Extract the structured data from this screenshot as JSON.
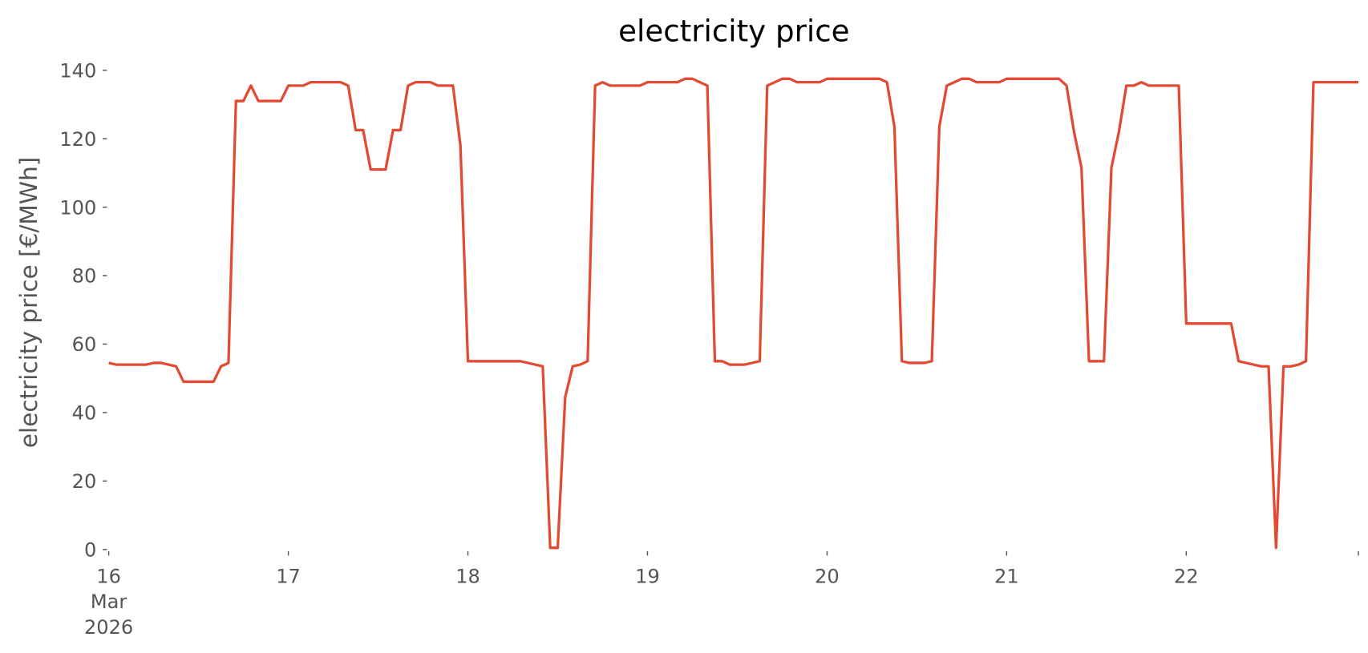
{
  "chart_data": {
    "type": "line",
    "title": "electricity price",
    "y_label": "electricity price [€/MWh]",
    "x": [
      "2026-03-16 00:00",
      "2026-03-16 01:00",
      "2026-03-16 02:00",
      "2026-03-16 03:00",
      "2026-03-16 04:00",
      "2026-03-16 05:00",
      "2026-03-16 06:00",
      "2026-03-16 07:00",
      "2026-03-16 08:00",
      "2026-03-16 09:00",
      "2026-03-16 10:00",
      "2026-03-16 11:00",
      "2026-03-16 12:00",
      "2026-03-16 13:00",
      "2026-03-16 14:00",
      "2026-03-16 15:00",
      "2026-03-16 16:00",
      "2026-03-16 17:00",
      "2026-03-16 18:00",
      "2026-03-16 19:00",
      "2026-03-16 20:00",
      "2026-03-16 21:00",
      "2026-03-16 22:00",
      "2026-03-16 23:00",
      "2026-03-17 00:00",
      "2026-03-17 01:00",
      "2026-03-17 02:00",
      "2026-03-17 03:00",
      "2026-03-17 04:00",
      "2026-03-17 05:00",
      "2026-03-17 06:00",
      "2026-03-17 07:00",
      "2026-03-17 08:00",
      "2026-03-17 09:00",
      "2026-03-17 10:00",
      "2026-03-17 11:00",
      "2026-03-17 12:00",
      "2026-03-17 13:00",
      "2026-03-17 14:00",
      "2026-03-17 15:00",
      "2026-03-17 16:00",
      "2026-03-17 17:00",
      "2026-03-17 18:00",
      "2026-03-17 19:00",
      "2026-03-17 20:00",
      "2026-03-17 21:00",
      "2026-03-17 22:00",
      "2026-03-17 23:00",
      "2026-03-18 00:00",
      "2026-03-18 01:00",
      "2026-03-18 02:00",
      "2026-03-18 03:00",
      "2026-03-18 04:00",
      "2026-03-18 05:00",
      "2026-03-18 06:00",
      "2026-03-18 07:00",
      "2026-03-18 08:00",
      "2026-03-18 09:00",
      "2026-03-18 10:00",
      "2026-03-18 11:00",
      "2026-03-18 12:00",
      "2026-03-18 13:00",
      "2026-03-18 14:00",
      "2026-03-18 15:00",
      "2026-03-18 16:00",
      "2026-03-18 17:00",
      "2026-03-18 18:00",
      "2026-03-18 19:00",
      "2026-03-18 20:00",
      "2026-03-18 21:00",
      "2026-03-18 22:00",
      "2026-03-18 23:00",
      "2026-03-19 00:00",
      "2026-03-19 01:00",
      "2026-03-19 02:00",
      "2026-03-19 03:00",
      "2026-03-19 04:00",
      "2026-03-19 05:00",
      "2026-03-19 06:00",
      "2026-03-19 07:00",
      "2026-03-19 08:00",
      "2026-03-19 09:00",
      "2026-03-19 10:00",
      "2026-03-19 11:00",
      "2026-03-19 12:00",
      "2026-03-19 13:00",
      "2026-03-19 14:00",
      "2026-03-19 15:00",
      "2026-03-19 16:00",
      "2026-03-19 17:00",
      "2026-03-19 18:00",
      "2026-03-19 19:00",
      "2026-03-19 20:00",
      "2026-03-19 21:00",
      "2026-03-19 22:00",
      "2026-03-19 23:00",
      "2026-03-20 00:00",
      "2026-03-20 01:00",
      "2026-03-20 02:00",
      "2026-03-20 03:00",
      "2026-03-20 04:00",
      "2026-03-20 05:00",
      "2026-03-20 06:00",
      "2026-03-20 07:00",
      "2026-03-20 08:00",
      "2026-03-20 09:00",
      "2026-03-20 10:00",
      "2026-03-20 11:00",
      "2026-03-20 12:00",
      "2026-03-20 13:00",
      "2026-03-20 14:00",
      "2026-03-20 15:00",
      "2026-03-20 16:00",
      "2026-03-20 17:00",
      "2026-03-20 18:00",
      "2026-03-20 19:00",
      "2026-03-20 20:00",
      "2026-03-20 21:00",
      "2026-03-20 22:00",
      "2026-03-20 23:00",
      "2026-03-21 00:00",
      "2026-03-21 01:00",
      "2026-03-21 02:00",
      "2026-03-21 03:00",
      "2026-03-21 04:00",
      "2026-03-21 05:00",
      "2026-03-21 06:00",
      "2026-03-21 07:00",
      "2026-03-21 08:00",
      "2026-03-21 09:00",
      "2026-03-21 10:00",
      "2026-03-21 11:00",
      "2026-03-21 12:00",
      "2026-03-21 13:00",
      "2026-03-21 14:00",
      "2026-03-21 15:00",
      "2026-03-21 16:00",
      "2026-03-21 17:00",
      "2026-03-21 18:00",
      "2026-03-21 19:00",
      "2026-03-21 20:00",
      "2026-03-21 21:00",
      "2026-03-21 22:00",
      "2026-03-21 23:00",
      "2026-03-22 00:00",
      "2026-03-22 01:00",
      "2026-03-22 02:00",
      "2026-03-22 03:00",
      "2026-03-22 04:00",
      "2026-03-22 05:00",
      "2026-03-22 06:00",
      "2026-03-22 07:00",
      "2026-03-22 08:00",
      "2026-03-22 09:00",
      "2026-03-22 10:00",
      "2026-03-22 11:00",
      "2026-03-22 12:00",
      "2026-03-22 13:00",
      "2026-03-22 14:00",
      "2026-03-22 15:00",
      "2026-03-22 16:00",
      "2026-03-22 17:00",
      "2026-03-22 18:00",
      "2026-03-22 19:00",
      "2026-03-22 20:00",
      "2026-03-22 21:00",
      "2026-03-22 22:00",
      "2026-03-22 23:00"
    ],
    "series": [
      {
        "color": "#e24a33",
        "values": [
          54.5,
          54,
          54,
          54,
          54,
          54,
          54.5,
          54.5,
          54,
          53.5,
          49,
          49,
          49,
          49,
          49,
          53.5,
          54.5,
          131,
          131,
          135.5,
          131,
          131,
          131,
          131,
          135.5,
          135.5,
          135.5,
          136.5,
          136.5,
          136.5,
          136.5,
          136.5,
          135.5,
          122.5,
          122.5,
          111,
          111,
          111,
          122.5,
          122.5,
          135.5,
          136.5,
          136.5,
          136.5,
          135.5,
          135.5,
          135.5,
          118,
          55,
          55,
          55,
          55,
          55,
          55,
          55,
          55,
          54.5,
          54,
          53.5,
          0.5,
          0.5,
          44.5,
          53.5,
          54,
          55,
          135.5,
          136.5,
          135.5,
          135.5,
          135.5,
          135.5,
          135.5,
          136.5,
          136.5,
          136.5,
          136.5,
          136.5,
          137.5,
          137.5,
          136.5,
          135.5,
          55,
          55,
          54,
          54,
          54,
          54.5,
          55,
          135.5,
          136.5,
          137.5,
          137.5,
          136.5,
          136.5,
          136.5,
          136.5,
          137.5,
          137.5,
          137.5,
          137.5,
          137.5,
          137.5,
          137.5,
          137.5,
          136.5,
          123.5,
          55,
          54.5,
          54.5,
          54.5,
          55,
          123.5,
          135.5,
          136.5,
          137.5,
          137.5,
          136.5,
          136.5,
          136.5,
          136.5,
          137.5,
          137.5,
          137.5,
          137.5,
          137.5,
          137.5,
          137.5,
          137.5,
          135.5,
          122,
          111.5,
          55,
          55,
          55,
          111.5,
          122,
          135.5,
          135.5,
          136.5,
          135.5,
          135.5,
          135.5,
          135.5,
          135.5,
          66,
          66,
          66,
          66,
          66,
          66,
          66,
          55,
          54.5,
          54,
          53.5,
          53.5,
          0.5,
          53.5,
          53.5,
          54,
          55,
          136.5,
          136.5,
          136.5,
          136.5,
          136.5,
          136.5,
          136.5
        ]
      }
    ],
    "xlim": [
      "2026-03-16 00:00",
      "2026-03-22 23:00"
    ],
    "xticks": [
      {
        "value": "2026-03-16 00:00",
        "label": [
          "16",
          "Mar",
          "2026"
        ]
      },
      {
        "value": "2026-03-17 00:00",
        "label": "17"
      },
      {
        "value": "2026-03-18 00:00",
        "label": "18"
      },
      {
        "value": "2026-03-19 00:00",
        "label": "19"
      },
      {
        "value": "2026-03-20 00:00",
        "label": "20"
      },
      {
        "value": "2026-03-21 00:00",
        "label": "21"
      },
      {
        "value": "2026-03-22 00:00",
        "label": "22"
      },
      {
        "value": "2026-03-22 23:00",
        "label": null
      }
    ],
    "ylim": [
      0,
      140
    ],
    "yticks": [
      0,
      20,
      40,
      60,
      80,
      100,
      120,
      140
    ],
    "grid": false
  }
}
